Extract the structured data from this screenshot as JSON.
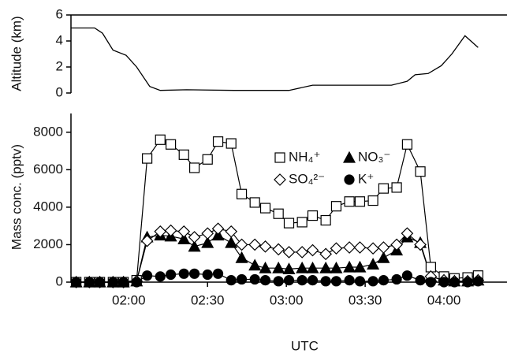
{
  "chart_data": [
    {
      "type": "line",
      "ylabel": "Altitude (km)",
      "color": "#000000",
      "x": [
        "01:38",
        "01:47",
        "01:50",
        "01:54",
        "01:59",
        "02:03",
        "02:08",
        "02:12",
        "02:22",
        "02:40",
        "03:01",
        "03:10",
        "03:40",
        "03:46",
        "03:49",
        "03:54",
        "03:59",
        "04:03",
        "04:08",
        "04:13"
      ],
      "values": [
        5.0,
        5.0,
        4.6,
        3.3,
        2.9,
        2.0,
        0.5,
        0.2,
        0.25,
        0.2,
        0.2,
        0.6,
        0.6,
        0.9,
        1.4,
        1.5,
        2.1,
        3.0,
        4.4,
        3.5
      ],
      "xlim": [
        "01:38",
        "04:24"
      ],
      "ylim": [
        0,
        6
      ],
      "yticks": [
        0,
        2,
        4,
        6
      ]
    },
    {
      "type": "line",
      "ylabel": "Mass conc. (pptv)",
      "xlabel": "UTC",
      "x": [
        "01:40",
        "01:45",
        "01:49",
        "01:54",
        "01:58",
        "02:03",
        "02:07",
        "02:12",
        "02:16",
        "02:21",
        "02:25",
        "02:30",
        "02:34",
        "02:39",
        "02:43",
        "02:48",
        "02:52",
        "02:57",
        "03:01",
        "03:06",
        "03:10",
        "03:15",
        "03:19",
        "03:24",
        "03:28",
        "03:33",
        "03:37",
        "03:42",
        "03:46",
        "03:51",
        "03:55",
        "04:00",
        "04:04",
        "04:09",
        "04:13"
      ],
      "series": [
        {
          "name": "NH₄⁺",
          "color": "#000000",
          "marker": "square",
          "filled": false,
          "values": [
            0,
            0,
            0,
            0,
            0,
            100,
            6600,
            7600,
            7350,
            6800,
            6100,
            6550,
            7500,
            7400,
            4700,
            4250,
            3950,
            3650,
            3150,
            3200,
            3550,
            3300,
            4050,
            4300,
            4300,
            4350,
            5000,
            5050,
            7350,
            5900,
            800,
            300,
            200,
            250,
            350
          ]
        },
        {
          "name": "NO₃⁻",
          "color": "#000000",
          "marker": "triangle",
          "filled": true,
          "values": [
            0,
            0,
            0,
            0,
            0,
            50,
            2400,
            2500,
            2450,
            2300,
            1900,
            2100,
            2500,
            2100,
            1300,
            900,
            750,
            750,
            700,
            750,
            750,
            750,
            750,
            800,
            800,
            950,
            1300,
            1700,
            2400,
            2100,
            300,
            100,
            50,
            50,
            100
          ]
        },
        {
          "name": "SO₄²⁻",
          "color": "#000000",
          "marker": "diamond",
          "filled": false,
          "values": [
            0,
            0,
            0,
            0,
            0,
            50,
            2200,
            2700,
            2750,
            2700,
            2400,
            2600,
            2850,
            2700,
            2000,
            2000,
            1900,
            1750,
            1600,
            1600,
            1700,
            1500,
            1800,
            1850,
            1850,
            1800,
            1850,
            2000,
            2600,
            2000,
            300,
            100,
            50,
            50,
            100
          ]
        },
        {
          "name": "K⁺",
          "color": "#000000",
          "marker": "circle",
          "filled": true,
          "values": [
            0,
            0,
            0,
            0,
            0,
            0,
            350,
            300,
            400,
            450,
            450,
            400,
            450,
            100,
            150,
            150,
            100,
            50,
            100,
            100,
            100,
            50,
            50,
            100,
            50,
            50,
            100,
            150,
            350,
            100,
            0,
            0,
            0,
            0,
            50
          ]
        }
      ],
      "xlim": [
        "01:38",
        "04:24"
      ],
      "xticks": [
        "02:00",
        "02:30",
        "03:00",
        "03:30",
        "04:00"
      ],
      "ylim": [
        0,
        9000
      ],
      "yticks": [
        0,
        2000,
        4000,
        6000,
        8000
      ]
    }
  ]
}
